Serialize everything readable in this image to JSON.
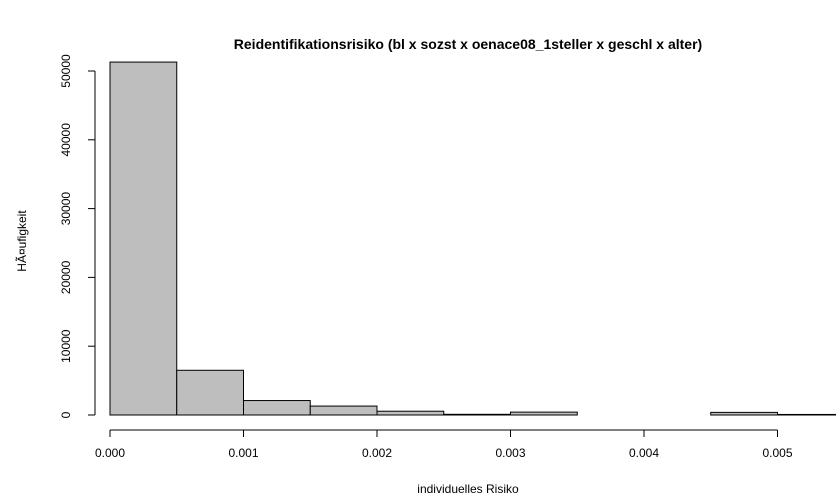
{
  "chart_data": {
    "type": "bar",
    "title": "Reidentifikationsrisiko (bl x sozst x oenace08_1steller x geschl x alter)",
    "xlabel": "individuelles Risiko",
    "ylabel": "HÃ¤ufigkeit",
    "bar_fill": "#bebebe",
    "bar_stroke": "#000000",
    "xlim": [
      0.0,
      0.0054
    ],
    "ylim": [
      0,
      52000
    ],
    "bin_edges": [
      0.0,
      0.0005,
      0.001,
      0.0015,
      0.002,
      0.0025,
      0.003,
      0.0035,
      0.004,
      0.0045,
      0.005,
      0.0055
    ],
    "values": [
      51300,
      6500,
      2100,
      1300,
      550,
      100,
      420,
      0,
      0,
      380,
      80
    ],
    "x_ticks": [
      {
        "value": 0.0,
        "label": "0.000"
      },
      {
        "value": 0.001,
        "label": "0.001"
      },
      {
        "value": 0.002,
        "label": "0.002"
      },
      {
        "value": 0.003,
        "label": "0.003"
      },
      {
        "value": 0.004,
        "label": "0.004"
      },
      {
        "value": 0.005,
        "label": "0.005"
      }
    ],
    "y_ticks": [
      {
        "value": 0,
        "label": "0"
      },
      {
        "value": 10000,
        "label": "10000"
      },
      {
        "value": 20000,
        "label": "20000"
      },
      {
        "value": 30000,
        "label": "30000"
      },
      {
        "value": 40000,
        "label": "40000"
      },
      {
        "value": 50000,
        "label": "50000"
      }
    ],
    "grid": false,
    "legend": "none"
  }
}
